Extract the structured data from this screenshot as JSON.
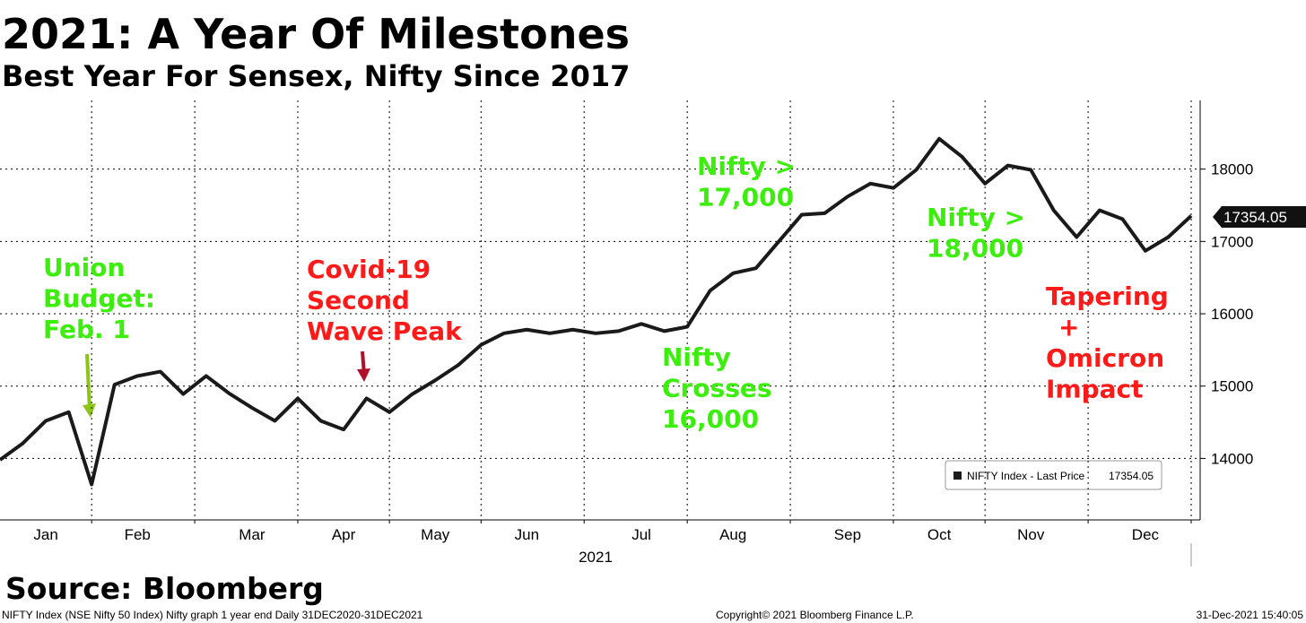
{
  "chart_data": {
    "type": "line",
    "title": "2021: A Year Of Milestones",
    "subtitle": "Best Year For Sensex, Nifty Since 2017",
    "x_label": "2021",
    "categories": [
      null,
      null,
      "Jan",
      null,
      null,
      null,
      "Feb",
      null,
      null,
      null,
      null,
      "Mar",
      null,
      null,
      null,
      "Apr",
      null,
      null,
      null,
      "May",
      null,
      null,
      null,
      "Jun",
      null,
      null,
      null,
      null,
      "Jul",
      null,
      null,
      null,
      "Aug",
      null,
      null,
      null,
      null,
      "Sep",
      null,
      null,
      null,
      "Oct",
      null,
      null,
      null,
      "Nov",
      null,
      null,
      null,
      null,
      "Dec",
      null,
      null
    ],
    "series": [
      {
        "name": "NIFTY Index - Last Price",
        "color": "#1a1a1a",
        "values": [
          13980,
          14210,
          14520,
          14640,
          13640,
          15020,
          15140,
          15200,
          14890,
          15140,
          14900,
          14700,
          14520,
          14830,
          14520,
          14400,
          14830,
          14640,
          14890,
          15080,
          15290,
          15570,
          15730,
          15780,
          15730,
          15780,
          15730,
          15760,
          15860,
          15760,
          15820,
          16320,
          16560,
          16630,
          17000,
          17370,
          17390,
          17620,
          17800,
          17740,
          17990,
          18420,
          18170,
          17800,
          18050,
          17990,
          17430,
          17060,
          17430,
          17310,
          16870,
          17060,
          17354.05
        ]
      }
    ],
    "ylim": [
      13150,
      18950
    ],
    "yticks": [
      14000,
      15000,
      16000,
      17000,
      18000
    ],
    "grid": true,
    "annotations": [
      {
        "lines": [
          "Union",
          "Budget:",
          "Feb. 1"
        ],
        "color": "#3cee0c"
      },
      {
        "lines": [
          "Covid-19",
          "Second",
          "Wave Peak"
        ],
        "color": "#ff1a1a"
      },
      {
        "lines": [
          "Nifty",
          "Crosses",
          "16,000"
        ],
        "color": "#3cee0c"
      },
      {
        "lines": [
          "Nifty >",
          "17,000"
        ],
        "color": "#3cee0c"
      },
      {
        "lines": [
          "Nifty >",
          "18,000"
        ],
        "color": "#3cee0c"
      },
      {
        "lines": [
          "Tapering",
          "+",
          "Omicron",
          "Impact"
        ],
        "color": "#ff1a1a"
      }
    ],
    "source": "Source: Bloomberg",
    "footer_left": "NIFTY Index (NSE Nifty 50 Index) Nifty graph 1 year end  Daily 31DEC2020-31DEC2021",
    "footer_center": "Copyright© 2021 Bloomberg Finance L.P.",
    "footer_right": "31-Dec-2021 15:40:05"
  }
}
